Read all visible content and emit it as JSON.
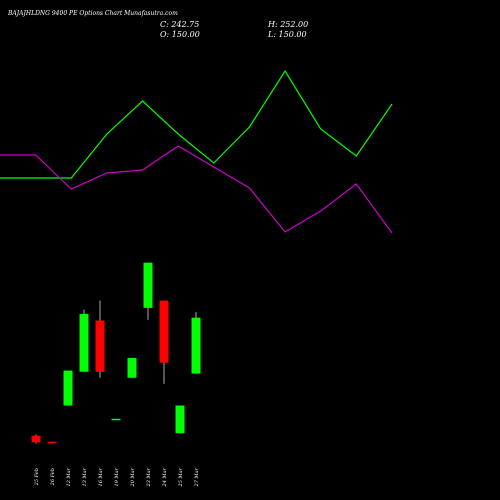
{
  "chart_data": [
    {
      "type": "candlestick",
      "title": "BAJAJHLDNG 9400 PE Options Chart Munafasutra.com",
      "summary": [
        "C: 242.75",
        "H: 252.00",
        "O: 150.00",
        "L: 150.00"
      ],
      "categories": [
        "25 Feb",
        "26 Feb",
        "12 Mar",
        "13 Mar",
        "16 Mar",
        "19 Mar",
        "20 Mar",
        "23 Mar",
        "24 Mar",
        "25 Mar",
        "27 Mar"
      ],
      "open": [
        47,
        37,
        97,
        153,
        238,
        74,
        143,
        259,
        271,
        51,
        150
      ],
      "high": [
        49,
        37,
        155,
        256,
        271,
        75,
        176,
        334,
        271,
        97,
        252
      ],
      "low": [
        34,
        34,
        97,
        153,
        143,
        74,
        143,
        239,
        133,
        51,
        150
      ],
      "close": [
        36,
        35,
        155,
        249,
        153,
        75,
        176,
        334,
        168,
        97,
        242.75
      ],
      "up_color": "#00ff00",
      "down_color": "#ff0000",
      "ylim": [
        0,
        350
      ]
    },
    {
      "type": "line",
      "series": [
        {
          "color": "#00ff00",
          "values": [
            72,
            72,
            72,
            116,
            149,
            116,
            87,
            123,
            179,
            121,
            94,
            146
          ]
        },
        {
          "color": "#cc00cc",
          "values": [
            95,
            95,
            61,
            77,
            80,
            104,
            83,
            62,
            18,
            39,
            66,
            17
          ]
        }
      ],
      "ylim": [
        0,
        200
      ]
    }
  ]
}
